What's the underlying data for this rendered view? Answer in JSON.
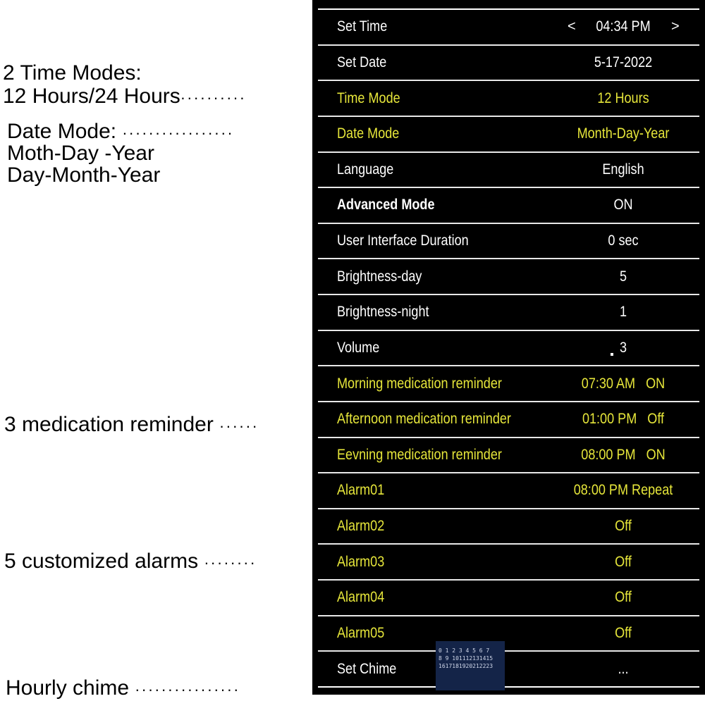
{
  "annotations": {
    "time_modes_title": "2 Time Modes:",
    "time_modes_options": "12 Hours/24 Hours",
    "date_mode_title": "Date Mode:",
    "date_mode_option1": "Moth-Day -Year",
    "date_mode_option2": "Day-Month-Year",
    "medication": "3 medication reminder",
    "alarms": "5 customized alarms",
    "chime": "Hourly chime"
  },
  "colors": {
    "panel_bg": "#000000",
    "text_white": "#ffffff",
    "text_yellow": "#e6e63a"
  },
  "settings": [
    {
      "label": "Set Time",
      "value": "04:34 PM",
      "prev": "<",
      "next": ">"
    },
    {
      "label": "Set Date",
      "value": "5-17-2022"
    },
    {
      "label": "Time Mode",
      "value": "12 Hours"
    },
    {
      "label": "Date Mode",
      "value": "Month-Day-Year"
    },
    {
      "label": "Language",
      "value": "English"
    },
    {
      "label": "Advanced Mode",
      "value": "ON"
    },
    {
      "label": "User Interface Duration",
      "value": "0 sec"
    },
    {
      "label": "Brightness-day",
      "value": "5"
    },
    {
      "label": "Brightness-night",
      "value": "1"
    },
    {
      "label": "Volume",
      "value": "3"
    },
    {
      "label": "Morning medication reminder",
      "value": "07:30 AM   ON"
    },
    {
      "label": "Afternoon medication reminder",
      "value": "01:00 PM   Off"
    },
    {
      "label": "Eevning medication reminder",
      "value": "08:00 PM   ON"
    },
    {
      "label": "Alarm01",
      "value": "08:00 PM Repeat"
    },
    {
      "label": "Alarm02",
      "value": "Off"
    },
    {
      "label": "Alarm03",
      "value": "Off"
    },
    {
      "label": "Alarm04",
      "value": "Off"
    },
    {
      "label": "Alarm05",
      "value": "Off"
    },
    {
      "label": "Set Chime",
      "value": "..."
    }
  ],
  "chime_grid": {
    "line1": "0 1 2 3 4 5 6 7",
    "line2": "8 9 101112131415",
    "line3": "1617181920212223"
  }
}
